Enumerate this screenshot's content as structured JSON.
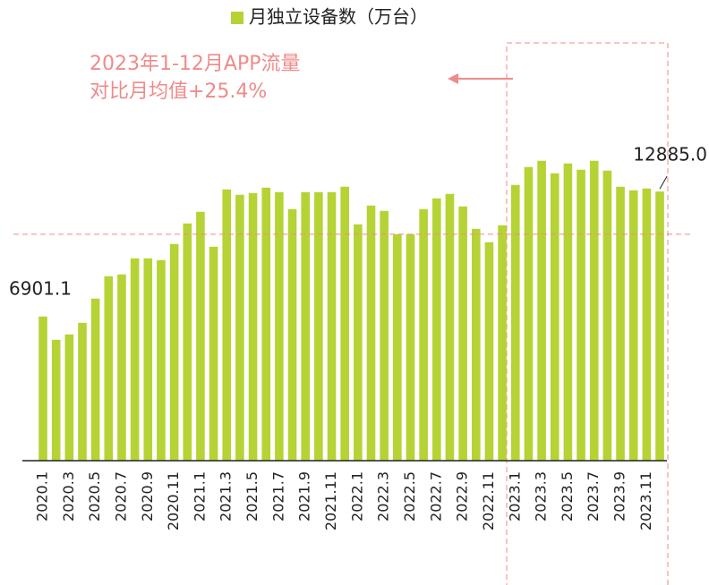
{
  "chart_data": {
    "type": "bar",
    "legend": "月独立设备数（万台）",
    "annotation": [
      "2023年1-12月APP流量",
      "对比月均值+25.4%"
    ],
    "categories": [
      "2020.1",
      null,
      "2020.3",
      null,
      "2020.5",
      null,
      "2020.7",
      null,
      "2020.9",
      null,
      "2020.11",
      null,
      "2021.1",
      null,
      "2021.3",
      null,
      "2021.5",
      null,
      "2021.7",
      null,
      "2021.9",
      null,
      "2021.11",
      null,
      "2022.1",
      null,
      "2022.3",
      null,
      "2022.5",
      null,
      "2022.7",
      null,
      "2022.9",
      null,
      "2022.11",
      null,
      "2023.1",
      null,
      "2023.3",
      null,
      "2023.5",
      null,
      "2023.7",
      null,
      "2023.9",
      null,
      "2023.11",
      null
    ],
    "values": [
      6901.1,
      5786,
      6043,
      6600,
      7758,
      8829,
      8915,
      9686,
      9686,
      9600,
      10372,
      11358,
      11915,
      10243,
      12986,
      12729,
      12815,
      13072,
      12858,
      12043,
      12858,
      12858,
      12858,
      13115,
      11315,
      12215,
      11958,
      10843,
      10843,
      12043,
      12558,
      12772,
      12172,
      11100,
      10458,
      11272,
      13201,
      14058,
      14358,
      13758,
      14230,
      13929,
      14358,
      13886,
      13115,
      12943,
      13029,
      12885.0
    ],
    "value_labels": [
      "6901.1",
      null,
      null,
      null,
      null,
      null,
      null,
      null,
      null,
      null,
      null,
      null,
      null,
      null,
      null,
      null,
      null,
      null,
      null,
      null,
      null,
      null,
      null,
      null,
      null,
      null,
      null,
      null,
      null,
      null,
      null,
      null,
      null,
      null,
      null,
      null,
      null,
      null,
      null,
      null,
      null,
      null,
      null,
      null,
      null,
      null,
      null,
      "12885.0"
    ],
    "reference_value": 10843,
    "color": "#b5d334",
    "annotation_color": "#f08a8a",
    "ylim": [
      0,
      20000
    ]
  }
}
